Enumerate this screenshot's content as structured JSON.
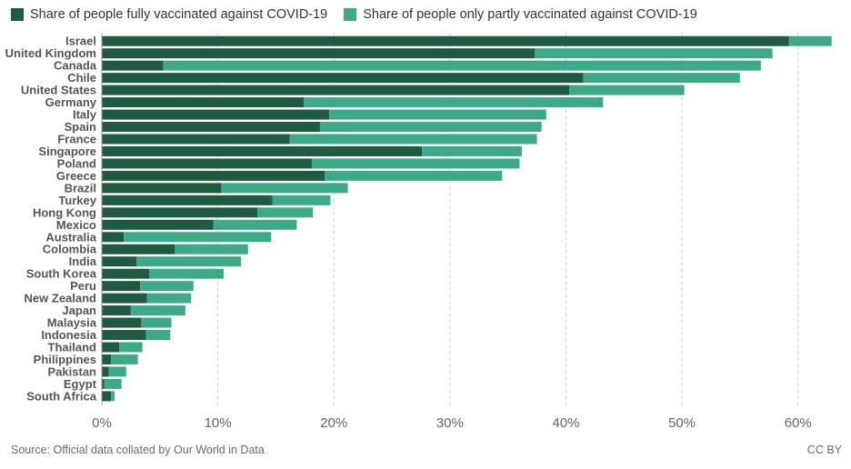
{
  "chart_data": {
    "type": "bar",
    "orientation": "horizontal",
    "stacked": true,
    "categories": [
      "Israel",
      "United Kingdom",
      "Canada",
      "Chile",
      "United States",
      "Germany",
      "Italy",
      "Spain",
      "France",
      "Singapore",
      "Poland",
      "Greece",
      "Brazil",
      "Turkey",
      "Hong Kong",
      "Mexico",
      "Australia",
      "Colombia",
      "India",
      "South Korea",
      "Peru",
      "New Zealand",
      "Japan",
      "Malaysia",
      "Indonesia",
      "Thailand",
      "Philippines",
      "Pakistan",
      "Egypt",
      "South Africa"
    ],
    "series": [
      {
        "name": "Share of people fully vaccinated against COVID-19",
        "color": "#1f5b43",
        "values": [
          59.2,
          37.3,
          5.3,
          41.5,
          40.3,
          17.4,
          19.6,
          18.8,
          16.2,
          27.6,
          18.1,
          19.2,
          10.3,
          14.7,
          13.4,
          9.6,
          1.9,
          6.3,
          3.0,
          4.1,
          3.3,
          3.9,
          2.5,
          3.4,
          3.8,
          1.5,
          0.8,
          0.6,
          0.2,
          0.8
        ]
      },
      {
        "name": "Share of people only partly vaccinated against COVID-19",
        "color": "#3ea988",
        "values": [
          3.7,
          20.5,
          51.5,
          13.5,
          9.9,
          25.8,
          18.7,
          19.1,
          21.3,
          8.6,
          17.9,
          15.3,
          10.9,
          5.0,
          4.8,
          7.2,
          12.7,
          6.3,
          9.0,
          6.4,
          4.6,
          3.8,
          4.7,
          2.6,
          2.1,
          2.0,
          2.3,
          1.5,
          1.5,
          0.3
        ]
      }
    ],
    "xlim": [
      0,
      63
    ],
    "xticks": [
      0,
      10,
      20,
      30,
      40,
      50,
      60
    ],
    "tick_format": "{v}%",
    "grid": "vertical dashed",
    "legend_placement": "top-left"
  },
  "source": "Source: Official data collated by Our World in Data",
  "license": "CC BY"
}
